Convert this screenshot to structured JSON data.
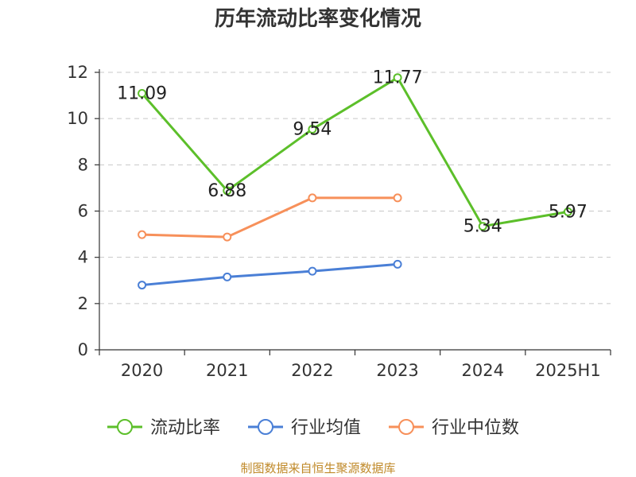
{
  "title": "历年流动比率变化情况",
  "source": "制图数据来自恒生聚源数据库",
  "chart_data": {
    "type": "line",
    "title": "历年流动比率变化情况",
    "xlabel": "",
    "ylabel": "",
    "categories": [
      "2020",
      "2021",
      "2022",
      "2023",
      "2024",
      "2025H1"
    ],
    "ylim": [
      0,
      12
    ],
    "yticks": [
      0,
      2,
      4,
      6,
      8,
      10,
      12
    ],
    "grid": "horizontal dashed",
    "legend_position": "bottom",
    "series": [
      {
        "name": "流动比率",
        "color": "#5cbf2a",
        "values": [
          11.09,
          6.88,
          9.54,
          11.77,
          5.34,
          5.97
        ],
        "labels": [
          "11.09",
          "6.88",
          "9.54",
          "11.77",
          "5.34",
          "5.97"
        ]
      },
      {
        "name": "行业均值",
        "color": "#4a7fd6",
        "values": [
          2.8,
          3.15,
          3.4,
          3.7,
          null,
          null
        ]
      },
      {
        "name": "行业中位数",
        "color": "#f7905a",
        "values": [
          4.98,
          4.88,
          6.57,
          6.57,
          null,
          null
        ]
      }
    ]
  }
}
